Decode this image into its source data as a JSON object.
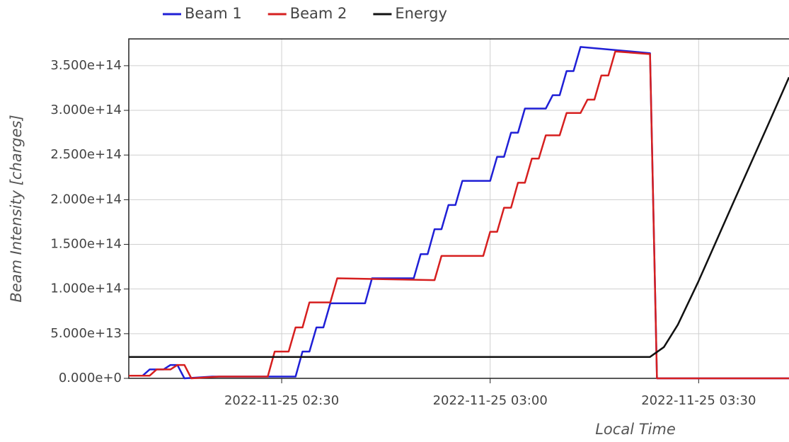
{
  "chart_data": {
    "type": "line",
    "xlabel": "Local Time",
    "ylabel": "Beam Intensity [charges]",
    "xlim": [
      "2022-11-25 02:08",
      "2022-11-25 03:43"
    ],
    "xticks": [
      "2022-11-25 02:30",
      "2022-11-25 03:00",
      "2022-11-25 03:30"
    ],
    "ylim": [
      0,
      380000000000000
    ],
    "yticks": [
      {
        "value": 0,
        "label": "0.000e+0"
      },
      {
        "value": 50000000000000,
        "label": "5.000e+13"
      },
      {
        "value": 100000000000000,
        "label": "1.000e+14"
      },
      {
        "value": 150000000000000,
        "label": "1.500e+14"
      },
      {
        "value": 200000000000000,
        "label": "2.000e+14"
      },
      {
        "value": 250000000000000,
        "label": "2.500e+14"
      },
      {
        "value": 300000000000000,
        "label": "3.000e+14"
      },
      {
        "value": 350000000000000,
        "label": "3.500e+14"
      }
    ],
    "grid": true,
    "legend": "top",
    "series": [
      {
        "name": "Beam 1",
        "color": "#1f1fd6",
        "x": [
          "2022-11-25 02:08",
          "2022-11-25 02:10",
          "2022-11-25 02:11",
          "2022-11-25 02:13",
          "2022-11-25 02:14",
          "2022-11-25 02:15",
          "2022-11-25 02:16",
          "2022-11-25 02:20",
          "2022-11-25 02:32",
          "2022-11-25 02:33",
          "2022-11-25 02:34",
          "2022-11-25 02:35",
          "2022-11-25 02:36",
          "2022-11-25 02:37",
          "2022-11-25 02:42",
          "2022-11-25 02:43",
          "2022-11-25 02:49",
          "2022-11-25 02:50",
          "2022-11-25 02:51",
          "2022-11-25 02:52",
          "2022-11-25 02:53",
          "2022-11-25 02:54",
          "2022-11-25 02:55",
          "2022-11-25 02:56",
          "2022-11-25 03:00",
          "2022-11-25 03:01",
          "2022-11-25 03:02",
          "2022-11-25 03:03",
          "2022-11-25 03:04",
          "2022-11-25 03:05",
          "2022-11-25 03:08",
          "2022-11-25 03:09",
          "2022-11-25 03:10",
          "2022-11-25 03:11",
          "2022-11-25 03:12",
          "2022-11-25 03:13",
          "2022-11-25 03:23",
          "2022-11-25 03:24",
          "2022-11-25 03:43"
        ],
        "values": [
          3000000000000,
          3000000000000,
          10000000000000,
          10000000000000,
          15000000000000,
          15000000000000,
          0,
          2000000000000,
          2000000000000,
          30000000000000,
          30000000000000,
          57000000000000,
          57000000000000,
          84000000000000,
          84000000000000,
          112000000000000,
          112000000000000,
          139000000000000,
          139000000000000,
          167000000000000,
          167000000000000,
          194000000000000,
          194000000000000,
          221000000000000,
          221000000000000,
          248000000000000,
          248000000000000,
          275000000000000,
          275000000000000,
          302000000000000,
          302000000000000,
          317000000000000,
          317000000000000,
          344000000000000,
          344000000000000,
          371000000000000,
          364000000000000,
          0,
          0
        ]
      },
      {
        "name": "Beam 2",
        "color": "#d61f1f",
        "x": [
          "2022-11-25 02:08",
          "2022-11-25 02:11",
          "2022-11-25 02:12",
          "2022-11-25 02:14",
          "2022-11-25 02:15",
          "2022-11-25 02:16",
          "2022-11-25 02:17",
          "2022-11-25 02:21",
          "2022-11-25 02:28",
          "2022-11-25 02:29",
          "2022-11-25 02:31",
          "2022-11-25 02:32",
          "2022-11-25 02:33",
          "2022-11-25 02:34",
          "2022-11-25 02:37",
          "2022-11-25 02:38",
          "2022-11-25 02:52",
          "2022-11-25 02:53",
          "2022-11-25 02:59",
          "2022-11-25 03:00",
          "2022-11-25 03:01",
          "2022-11-25 03:02",
          "2022-11-25 03:03",
          "2022-11-25 03:04",
          "2022-11-25 03:05",
          "2022-11-25 03:06",
          "2022-11-25 03:07",
          "2022-11-25 03:08",
          "2022-11-25 03:10",
          "2022-11-25 03:11",
          "2022-11-25 03:13",
          "2022-11-25 03:14",
          "2022-11-25 03:15",
          "2022-11-25 03:16",
          "2022-11-25 03:17",
          "2022-11-25 03:18",
          "2022-11-25 03:23",
          "2022-11-25 03:24",
          "2022-11-25 03:43"
        ],
        "values": [
          3000000000000,
          3000000000000,
          10000000000000,
          10000000000000,
          15000000000000,
          15000000000000,
          0,
          2000000000000,
          2000000000000,
          30000000000000,
          30000000000000,
          57000000000000,
          57000000000000,
          85000000000000,
          85000000000000,
          112000000000000,
          110000000000000,
          137000000000000,
          137000000000000,
          164000000000000,
          164000000000000,
          191000000000000,
          191000000000000,
          219000000000000,
          219000000000000,
          246000000000000,
          246000000000000,
          272000000000000,
          272000000000000,
          297000000000000,
          297000000000000,
          312000000000000,
          312000000000000,
          339000000000000,
          339000000000000,
          366000000000000,
          363000000000000,
          0,
          0
        ]
      },
      {
        "name": "Energy",
        "color": "#111111",
        "x": [
          "2022-11-25 02:08",
          "2022-11-25 03:23",
          "2022-11-25 03:25",
          "2022-11-25 03:27",
          "2022-11-25 03:30",
          "2022-11-25 03:35",
          "2022-11-25 03:40",
          "2022-11-25 03:43"
        ],
        "values": [
          24000000000000,
          24000000000000,
          35000000000000,
          60000000000000,
          109000000000000,
          197000000000000,
          284000000000000,
          337000000000000
        ]
      }
    ]
  }
}
